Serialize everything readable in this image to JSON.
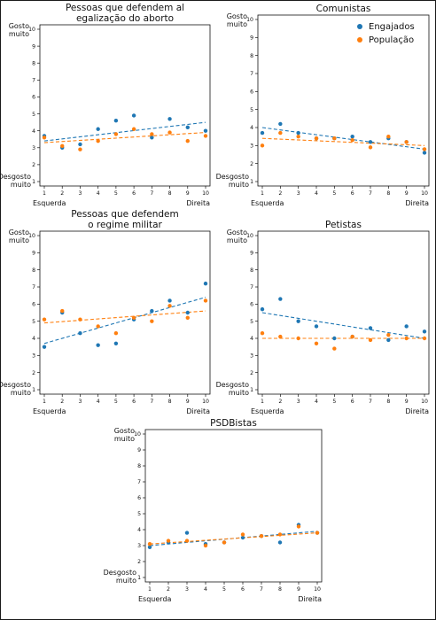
{
  "colors": {
    "engajados": "#1f77b4",
    "populacao": "#ff7f0e"
  },
  "chart_data": [
    {
      "type": "scatter",
      "title_lines": [
        "Pessoas que defendem al",
        "egalização do aborto"
      ],
      "x": [
        1,
        2,
        3,
        4,
        5,
        6,
        7,
        8,
        9,
        10
      ],
      "ylim": [
        1,
        10
      ],
      "xlim": [
        1,
        10
      ],
      "top_label_lines": [
        "Gosto",
        "muito"
      ],
      "bottom_label_lines": [
        "Desgosto",
        "muito"
      ],
      "left_label": "Esquerda",
      "right_label": "Direita",
      "series": [
        {
          "name": "Engajados",
          "values": [
            3.7,
            3.0,
            3.2,
            4.1,
            4.6,
            4.9,
            3.6,
            4.7,
            4.2,
            4.0
          ],
          "trend": [
            3.4,
            4.5
          ]
        },
        {
          "name": "População",
          "values": [
            3.6,
            3.1,
            2.9,
            3.4,
            3.8,
            4.1,
            3.8,
            3.9,
            3.4,
            3.7
          ],
          "trend": [
            3.3,
            3.9
          ]
        }
      ]
    },
    {
      "type": "scatter",
      "title_lines": [
        "Comunistas"
      ],
      "x": [
        1,
        2,
        3,
        4,
        5,
        6,
        7,
        8,
        9,
        10
      ],
      "ylim": [
        1,
        10
      ],
      "xlim": [
        1,
        10
      ],
      "legend_position": "upper-right",
      "top_label_lines": [
        "Gosto",
        "muito"
      ],
      "bottom_label_lines": [
        "Desgosto",
        "muito"
      ],
      "left_label": "Esquerda",
      "right_label": "Direita",
      "series": [
        {
          "name": "Engajados",
          "values": [
            3.7,
            4.2,
            3.7,
            3.4,
            3.4,
            3.5,
            3.2,
            3.4,
            3.2,
            2.6
          ],
          "trend": [
            4.0,
            2.8
          ]
        },
        {
          "name": "População",
          "values": [
            3.0,
            3.7,
            3.5,
            3.4,
            3.4,
            3.3,
            2.9,
            3.5,
            3.2,
            2.8
          ],
          "trend": [
            3.4,
            3.0
          ]
        }
      ]
    },
    {
      "type": "scatter",
      "title_lines": [
        "Pessoas que defendem",
        "o regime militar"
      ],
      "x": [
        1,
        2,
        3,
        4,
        5,
        6,
        7,
        8,
        9,
        10
      ],
      "ylim": [
        1,
        10
      ],
      "xlim": [
        1,
        10
      ],
      "top_label_lines": [
        "Gosto",
        "muito"
      ],
      "bottom_label_lines": [
        "Desgosto",
        "muito"
      ],
      "left_label": "Esquerda",
      "right_label": "Direita",
      "series": [
        {
          "name": "Engajados",
          "values": [
            3.5,
            5.5,
            4.3,
            3.6,
            3.7,
            5.1,
            5.6,
            6.2,
            5.5,
            7.2
          ],
          "trend": [
            3.7,
            6.4
          ]
        },
        {
          "name": "População",
          "values": [
            5.1,
            5.6,
            5.1,
            4.7,
            4.3,
            5.2,
            5.0,
            5.9,
            5.2,
            6.2
          ],
          "trend": [
            4.9,
            5.6
          ]
        }
      ]
    },
    {
      "type": "scatter",
      "title_lines": [
        "Petistas"
      ],
      "x": [
        1,
        2,
        3,
        4,
        5,
        6,
        7,
        8,
        9,
        10
      ],
      "ylim": [
        1,
        10
      ],
      "xlim": [
        1,
        10
      ],
      "top_label_lines": [
        "Gosto",
        "muito"
      ],
      "bottom_label_lines": [
        "Desgosto",
        "muito"
      ],
      "left_label": "Esquerda",
      "right_label": "Direita",
      "series": [
        {
          "name": "Engajados",
          "values": [
            5.7,
            6.3,
            5.0,
            4.7,
            4.0,
            4.1,
            4.6,
            3.9,
            4.7,
            4.4
          ],
          "trend": [
            5.5,
            4.0
          ]
        },
        {
          "name": "População",
          "values": [
            4.3,
            4.1,
            4.0,
            3.7,
            3.4,
            4.1,
            3.9,
            4.2,
            4.0,
            4.0
          ],
          "trend": [
            4.0,
            4.0
          ]
        }
      ]
    },
    {
      "type": "scatter",
      "title_lines": [
        "PSDBistas"
      ],
      "x": [
        1,
        2,
        3,
        4,
        5,
        6,
        7,
        8,
        9,
        10
      ],
      "ylim": [
        1,
        10
      ],
      "xlim": [
        1,
        10
      ],
      "top_label_lines": [
        "Gosto",
        "muito"
      ],
      "bottom_label_lines": [
        "Desgosto",
        "muito"
      ],
      "left_label": "Esquerda",
      "right_label": "Direita",
      "series": [
        {
          "name": "Engajados",
          "values": [
            2.9,
            3.2,
            3.8,
            3.1,
            3.2,
            3.5,
            3.6,
            3.2,
            4.3,
            3.8
          ],
          "trend": [
            3.0,
            3.9
          ]
        },
        {
          "name": "População",
          "values": [
            3.1,
            3.3,
            3.3,
            3.0,
            3.2,
            3.7,
            3.6,
            3.7,
            4.2,
            3.8
          ],
          "trend": [
            3.1,
            3.8
          ]
        }
      ]
    }
  ]
}
